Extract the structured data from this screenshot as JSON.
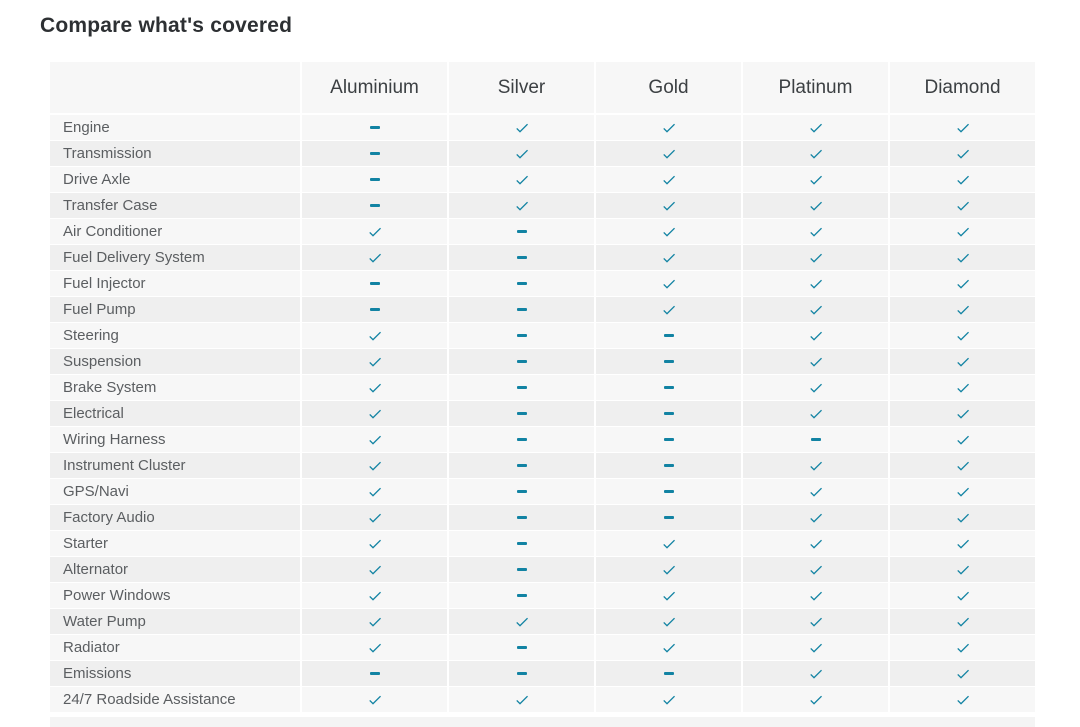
{
  "title": "Compare what's covered",
  "table": {
    "columns": [
      "Aluminium",
      "Silver",
      "Gold",
      "Platinum",
      "Diamond"
    ],
    "rows": [
      {
        "label": "Engine",
        "coverage": [
          "dash",
          "check",
          "check",
          "check",
          "check"
        ]
      },
      {
        "label": "Transmission",
        "coverage": [
          "dash",
          "check",
          "check",
          "check",
          "check"
        ]
      },
      {
        "label": "Drive Axle",
        "coverage": [
          "dash",
          "check",
          "check",
          "check",
          "check"
        ]
      },
      {
        "label": "Transfer Case",
        "coverage": [
          "dash",
          "check",
          "check",
          "check",
          "check"
        ]
      },
      {
        "label": "Air Conditioner",
        "coverage": [
          "check",
          "dash",
          "check",
          "check",
          "check"
        ]
      },
      {
        "label": "Fuel Delivery System",
        "coverage": [
          "check",
          "dash",
          "check",
          "check",
          "check"
        ]
      },
      {
        "label": "Fuel Injector",
        "coverage": [
          "dash",
          "dash",
          "check",
          "check",
          "check"
        ]
      },
      {
        "label": "Fuel Pump",
        "coverage": [
          "dash",
          "dash",
          "check",
          "check",
          "check"
        ]
      },
      {
        "label": "Steering",
        "coverage": [
          "check",
          "dash",
          "dash",
          "check",
          "check"
        ]
      },
      {
        "label": "Suspension",
        "coverage": [
          "check",
          "dash",
          "dash",
          "check",
          "check"
        ]
      },
      {
        "label": "Brake System",
        "coverage": [
          "check",
          "dash",
          "dash",
          "check",
          "check"
        ]
      },
      {
        "label": "Electrical",
        "coverage": [
          "check",
          "dash",
          "dash",
          "check",
          "check"
        ]
      },
      {
        "label": "Wiring Harness",
        "coverage": [
          "check",
          "dash",
          "dash",
          "dash",
          "check"
        ]
      },
      {
        "label": "Instrument Cluster",
        "coverage": [
          "check",
          "dash",
          "dash",
          "check",
          "check"
        ]
      },
      {
        "label": "GPS/Navi",
        "coverage": [
          "check",
          "dash",
          "dash",
          "check",
          "check"
        ]
      },
      {
        "label": "Factory Audio",
        "coverage": [
          "check",
          "dash",
          "dash",
          "check",
          "check"
        ]
      },
      {
        "label": "Starter",
        "coverage": [
          "check",
          "dash",
          "check",
          "check",
          "check"
        ]
      },
      {
        "label": "Alternator",
        "coverage": [
          "check",
          "dash",
          "check",
          "check",
          "check"
        ]
      },
      {
        "label": "Power Windows",
        "coverage": [
          "check",
          "dash",
          "check",
          "check",
          "check"
        ]
      },
      {
        "label": "Water Pump",
        "coverage": [
          "check",
          "check",
          "check",
          "check",
          "check"
        ]
      },
      {
        "label": "Radiator",
        "coverage": [
          "check",
          "dash",
          "check",
          "check",
          "check"
        ]
      },
      {
        "label": "Emissions",
        "coverage": [
          "dash",
          "dash",
          "dash",
          "check",
          "check"
        ]
      },
      {
        "label": "24/7 Roadside Assistance",
        "coverage": [
          "check",
          "check",
          "check",
          "check",
          "check"
        ]
      }
    ]
  },
  "icons": {
    "check": "check-icon",
    "dash": "dash-icon"
  },
  "colors": {
    "accent": "#1283a3",
    "row_odd": "#f7f7f7",
    "row_even": "#efefef",
    "header_bg": "#f7f7f7",
    "title_text": "#2d3033",
    "header_text": "#3c4043",
    "label_text": "#5b5e61"
  }
}
